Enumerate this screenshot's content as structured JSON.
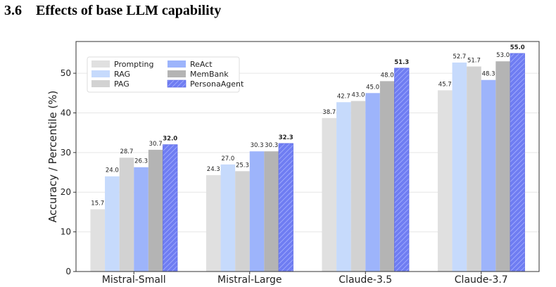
{
  "section": {
    "number": "3.6",
    "title": "Effects of base LLM capability"
  },
  "colors": {
    "Prompting": "#e0e0e0",
    "RAG": "#c6dafc",
    "PAG": "#d2d2d2",
    "ReAct": "#9db4fb",
    "MemBank": "#b4b4b4",
    "PersonaAgent": "#6f7df2"
  },
  "chart_data": {
    "type": "bar",
    "title": "",
    "xlabel": "",
    "ylabel": "Accuracy / Percentile (%)",
    "ylim": [
      0,
      58
    ],
    "yticks": [
      0,
      10,
      20,
      30,
      40,
      50
    ],
    "grid": true,
    "legend_position": "top-left",
    "categories": [
      "Mistral-Small",
      "Mistral-Large",
      "Claude-3.5",
      "Claude-3.7"
    ],
    "series": [
      {
        "name": "Prompting",
        "values": [
          15.7,
          24.3,
          38.7,
          45.7
        ],
        "labels": [
          "15.7",
          "24.3",
          "38.7",
          "45.7"
        ]
      },
      {
        "name": "RAG",
        "values": [
          24.0,
          27.0,
          42.7,
          52.7
        ],
        "labels": [
          "24.0",
          "27.0",
          "42.7",
          "52.7"
        ]
      },
      {
        "name": "PAG",
        "values": [
          28.7,
          25.3,
          43.0,
          51.7
        ],
        "labels": [
          "28.7",
          "25.3",
          "43.0",
          "51.7"
        ]
      },
      {
        "name": "ReAct",
        "values": [
          26.3,
          30.3,
          45.0,
          48.3
        ],
        "labels": [
          "26.3",
          "30.3",
          "45.0",
          "48.3"
        ]
      },
      {
        "name": "MemBank",
        "values": [
          30.7,
          30.3,
          48.0,
          53.0
        ],
        "labels": [
          "30.7",
          "30.3",
          "48.0",
          "53.0"
        ]
      },
      {
        "name": "PersonaAgent",
        "values": [
          32.0,
          32.3,
          51.3,
          55.0
        ],
        "labels": [
          "32.0",
          "32.3",
          "51.3",
          "55.0"
        ]
      }
    ]
  }
}
